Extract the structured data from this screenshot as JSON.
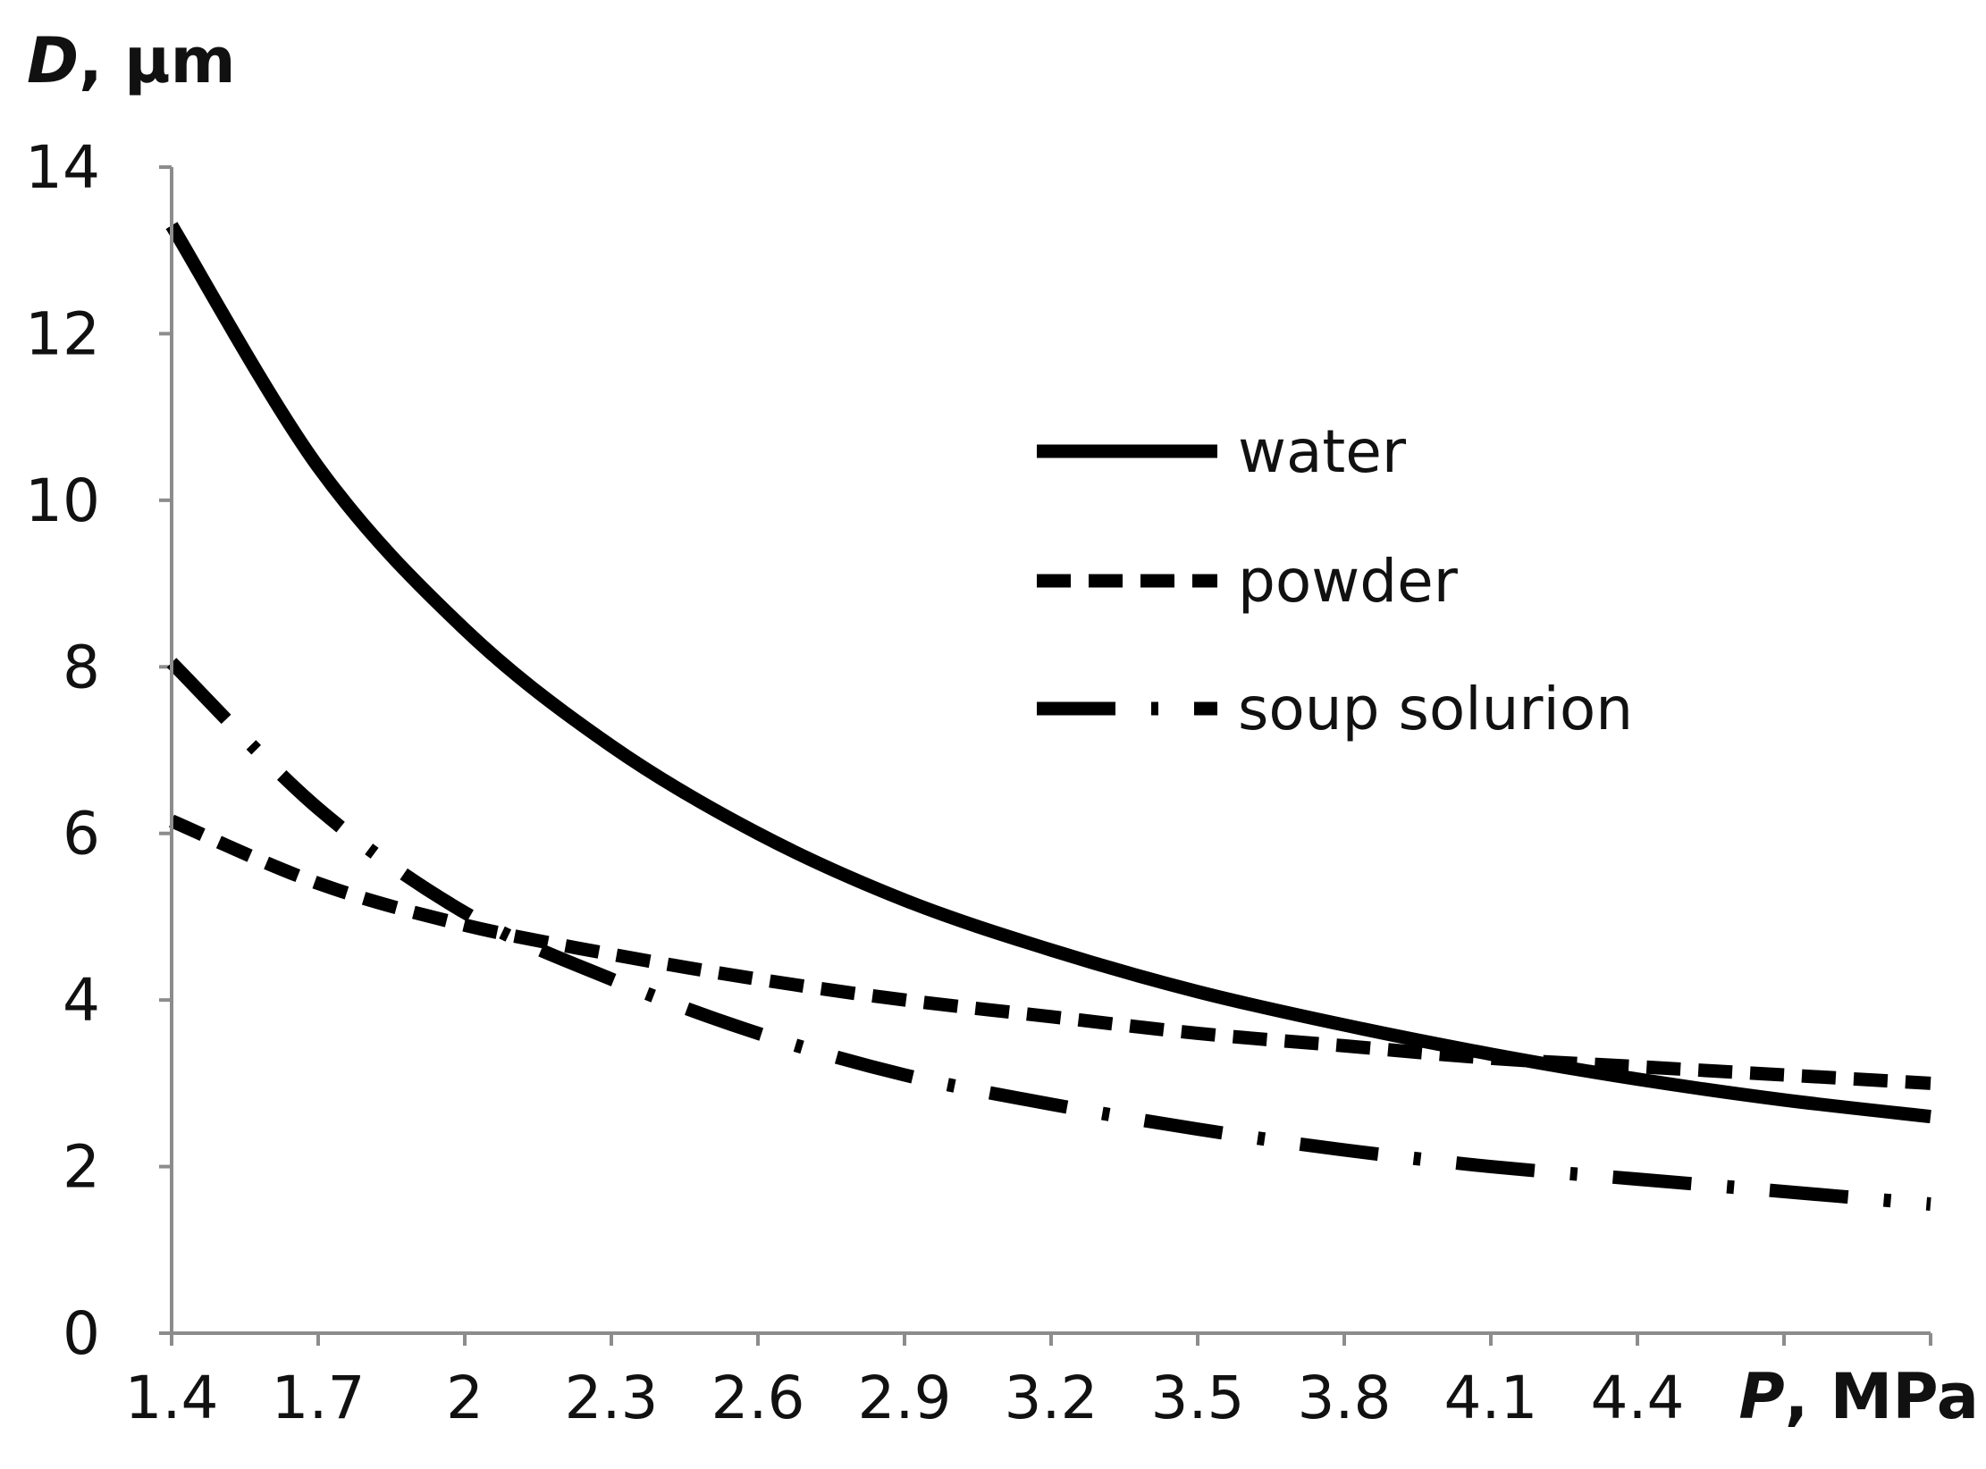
{
  "chart_data": {
    "type": "line",
    "title": "",
    "xlabel": {
      "var": "P",
      "unit": ", MPa"
    },
    "ylabel": {
      "var": "D",
      "unit": ", µm"
    },
    "x": [
      1.4,
      1.7,
      2.0,
      2.3,
      2.6,
      2.9,
      3.2,
      3.5,
      3.8,
      4.1,
      4.4,
      4.7,
      5.0
    ],
    "xtick_labels": [
      "1.4",
      "1.7",
      "2",
      "2.3",
      "2.6",
      "2.9",
      "3.2",
      "3.5",
      "3.8",
      "4.1",
      "4.4"
    ],
    "yticks": [
      "0",
      "2",
      "4",
      "6",
      "8",
      "10",
      "12",
      "14"
    ],
    "xlim": [
      1.4,
      5.0
    ],
    "ylim": [
      0,
      14
    ],
    "grid": false,
    "legend_position": "right",
    "series": [
      {
        "name": "water",
        "style": "solid",
        "values": [
          13.3,
          10.4,
          8.45,
          7.05,
          6.0,
          5.2,
          4.6,
          4.1,
          3.7,
          3.35,
          3.05,
          2.8,
          2.6
        ]
      },
      {
        "name": "powder",
        "style": "short-dash",
        "values": [
          6.15,
          5.4,
          4.9,
          4.55,
          4.25,
          4.0,
          3.8,
          3.6,
          3.45,
          3.3,
          3.2,
          3.1,
          3.0
        ]
      },
      {
        "name": "soup solurion",
        "style": "long-dash-dot",
        "values": [
          8.05,
          6.3,
          5.05,
          4.25,
          3.6,
          3.1,
          2.75,
          2.45,
          2.2,
          2.0,
          1.85,
          1.7,
          1.55
        ]
      }
    ]
  }
}
